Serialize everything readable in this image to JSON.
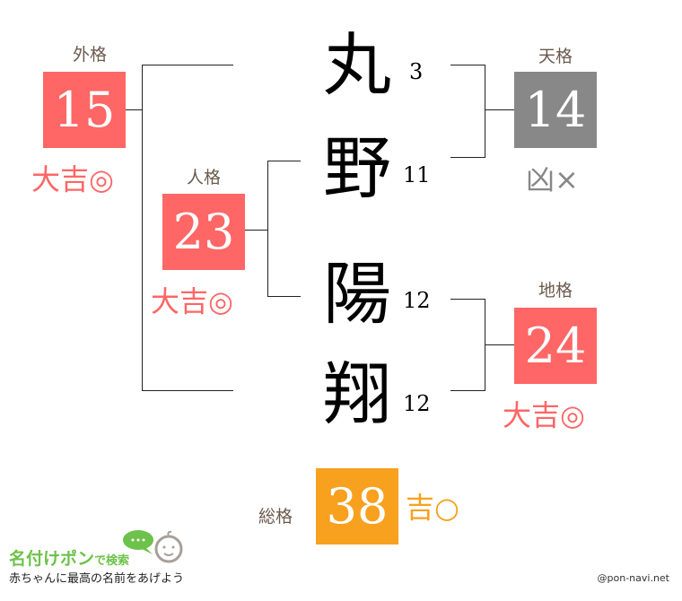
{
  "colors": {
    "great": "#ff6666",
    "bad": "#888888",
    "good": "#f7a11f",
    "label": "#6b5a4e"
  },
  "name_chars": [
    {
      "char": "丸",
      "strokes": "3"
    },
    {
      "char": "野",
      "strokes": "11"
    },
    {
      "char": "陽",
      "strokes": "12"
    },
    {
      "char": "翔",
      "strokes": "12"
    }
  ],
  "gaikaku": {
    "label": "外格",
    "value": "15",
    "fortune": "大吉◎"
  },
  "jinkaku": {
    "label": "人格",
    "value": "23",
    "fortune": "大吉◎"
  },
  "tenkaku": {
    "label": "天格",
    "value": "14",
    "fortune": "凶×"
  },
  "chikaku": {
    "label": "地格",
    "value": "24",
    "fortune": "大吉◎"
  },
  "soukaku": {
    "label": "総格",
    "value": "38",
    "fortune": "吉○"
  },
  "footer": {
    "logo_title": "名付けポン",
    "logo_suffix": "で検索",
    "tagline": "赤ちゃんに最高の名前をあげよう",
    "credit": "@pon-navi.net"
  }
}
